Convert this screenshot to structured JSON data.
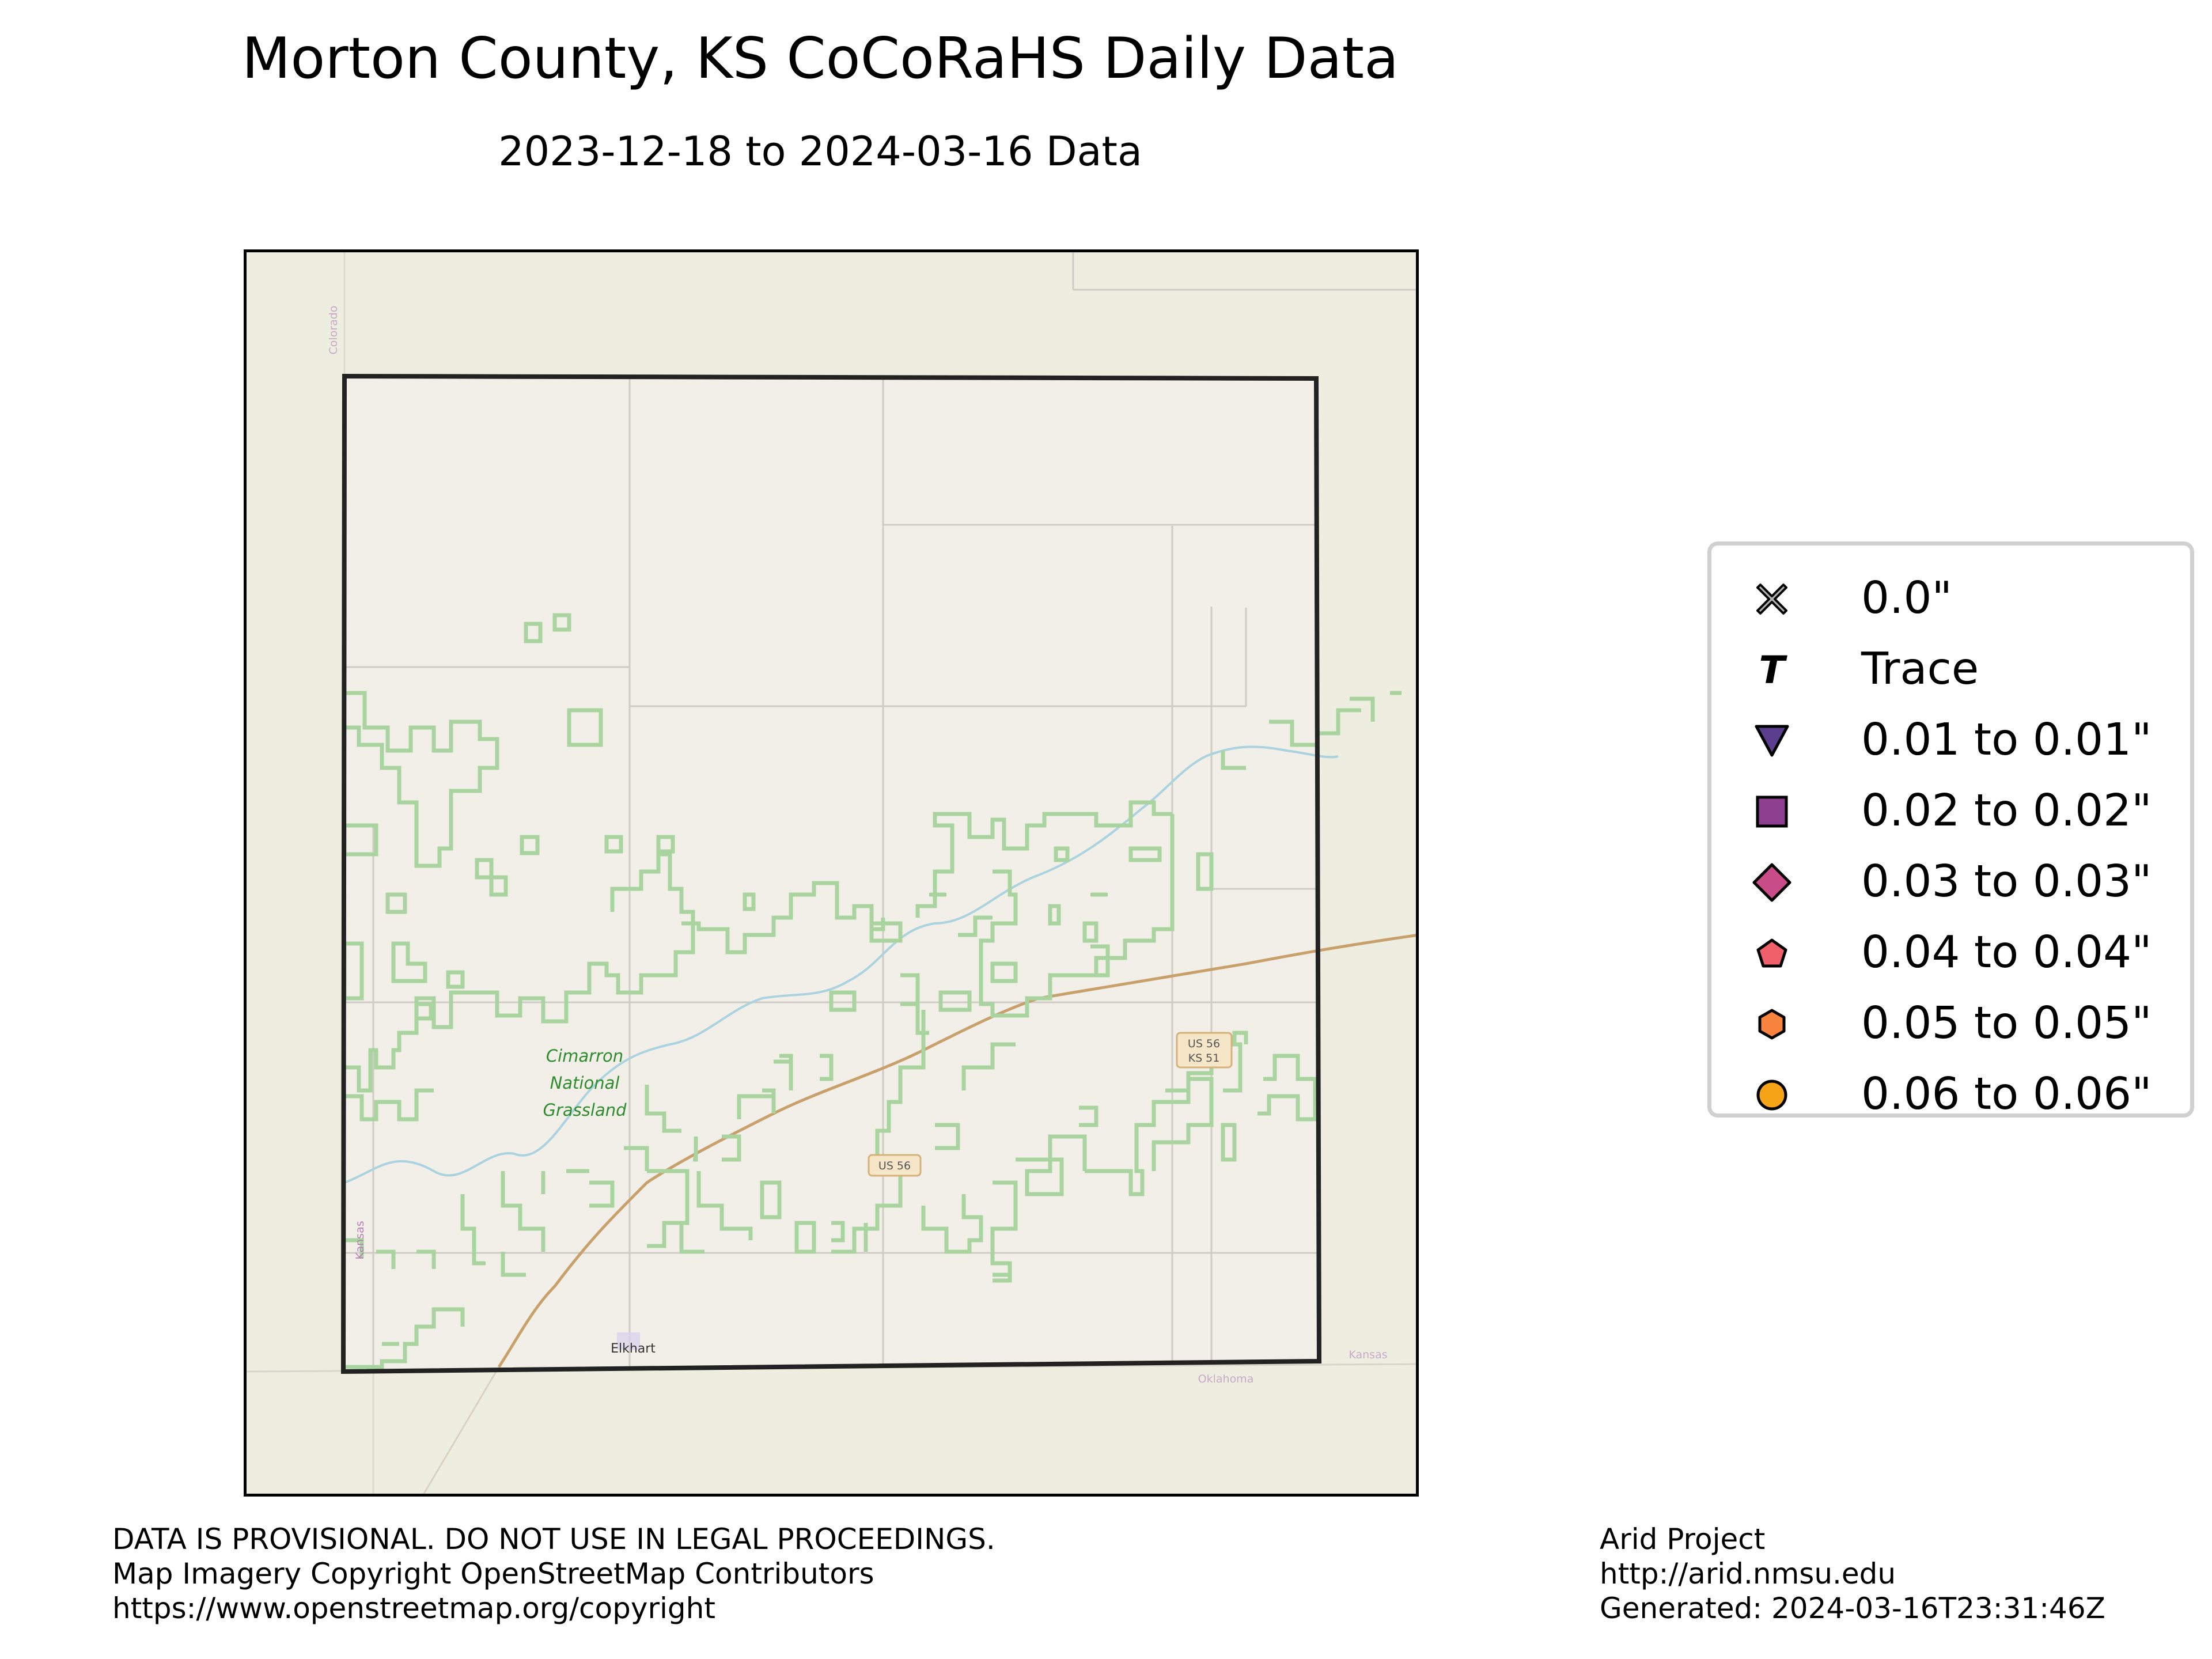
{
  "title": "Morton County, KS CoCoRaHS Daily Data",
  "subtitle": "2023-12-18 to 2024-03-16 Data",
  "map": {
    "labels": {
      "grassland": [
        "Cimarron",
        "National",
        "Grassland"
      ],
      "town": "Elkhart",
      "highway_shield_1": [
        "US 56",
        "KS 51"
      ],
      "highway_shield_2": "US 56",
      "state_colorado": "Colorado",
      "state_kansas_west": "Kansas",
      "state_kansas_south": "Kansas",
      "state_oklahoma": "Oklahoma"
    },
    "colors": {
      "background": "#eeeee0",
      "county_fill": "#f2efe9",
      "grassland_outline": "#a9d49f",
      "river": "#aad3df",
      "highway": "#c8a06b",
      "county_border": "#222222"
    }
  },
  "legend": {
    "items": [
      {
        "label": "0.0\"",
        "icon": "x-marker",
        "color": "#b0b0b0"
      },
      {
        "label": "Trace",
        "icon": "t-marker",
        "color": "#000000"
      },
      {
        "label": "0.01 to 0.01\"",
        "icon": "triangle-down-marker",
        "color": "#5b3e8e"
      },
      {
        "label": "0.02 to 0.02\"",
        "icon": "square-marker",
        "color": "#8e3f8f"
      },
      {
        "label": "0.03 to 0.03\"",
        "icon": "diamond-marker",
        "color": "#c84c87"
      },
      {
        "label": "0.04 to 0.04\"",
        "icon": "pentagon-marker",
        "color": "#f0606a"
      },
      {
        "label": "0.05 to 0.05\"",
        "icon": "hexagon-marker",
        "color": "#f8833f"
      },
      {
        "label": "0.06 to 0.06\"",
        "icon": "circle-marker",
        "color": "#f5a418"
      }
    ]
  },
  "footer": {
    "left": [
      "DATA IS PROVISIONAL. DO NOT USE IN LEGAL PROCEEDINGS.",
      "Map Imagery Copyright OpenStreetMap Contributors",
      "https://www.openstreetmap.org/copyright"
    ],
    "right": [
      "Arid Project",
      "http://arid.nmsu.edu",
      "Generated: 2024-03-16T23:31:46Z"
    ]
  }
}
